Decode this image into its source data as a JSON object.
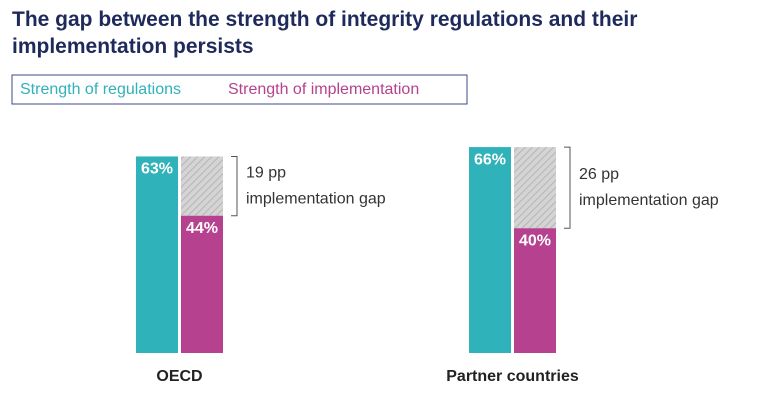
{
  "chart_data": {
    "type": "gap-bar",
    "title": "The gap between the strength of integrity regulations and their implementation persists",
    "categories": [
      "OECD",
      "Partner countries"
    ],
    "series": [
      {
        "name": "Strength of regulations",
        "color": "#2fb2b9",
        "values": [
          63,
          66
        ],
        "value_labels": [
          "63%",
          "66%"
        ]
      },
      {
        "name": "Strength of implementation",
        "color": "#b6428f",
        "values": [
          44,
          40
        ],
        "value_labels": [
          "44%",
          "40%"
        ]
      }
    ],
    "gap_labels": [
      "19 pp",
      "26 pp"
    ],
    "gap_note": "implementation gap"
  }
}
